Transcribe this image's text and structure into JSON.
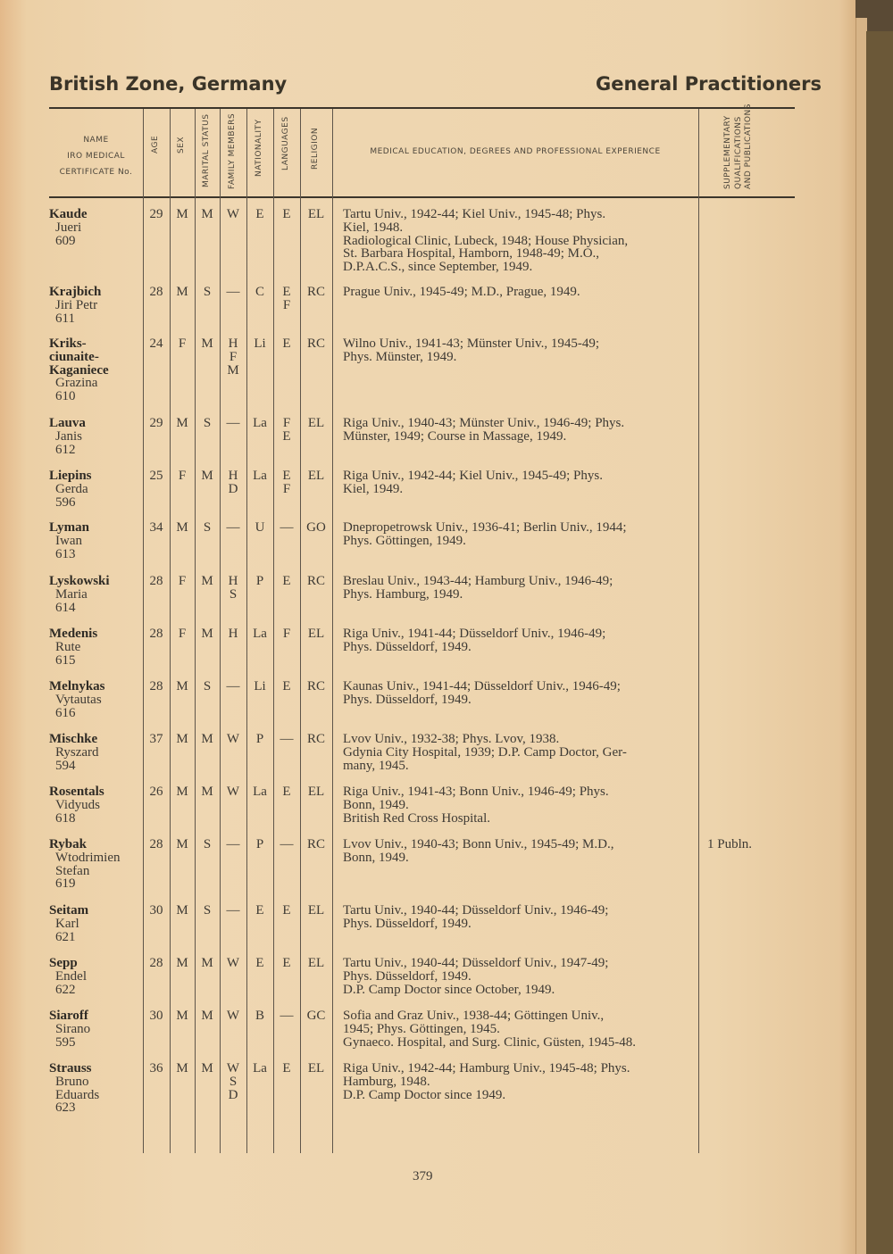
{
  "header": {
    "left": "British Zone, Germany",
    "right": "General Practitioners"
  },
  "columns": {
    "name": [
      "NAME",
      "IRO MEDICAL",
      "CERTIFICATE No."
    ],
    "age": "AGE",
    "sex": "SEX",
    "marital": "MARITAL STATUS",
    "family": "FAMILY MEMBERS",
    "nationality": "NATIONALITY",
    "languages": "LANGUAGES",
    "religion": "RELIGION",
    "education": "MEDICAL EDUCATION, DEGREES AND PROFESSIONAL EXPERIENCE",
    "supplementary": [
      "SUPPLEMENTARY",
      "QUALIFICATIONS",
      "AND PUBLICATIONS"
    ]
  },
  "rows": [
    {
      "surname": [
        "Kaude"
      ],
      "given": [
        "Jueri"
      ],
      "cert": "609",
      "age": "29",
      "sex": "M",
      "marital": "M",
      "family": [
        "W"
      ],
      "nationality": "E",
      "languages": [
        "E"
      ],
      "religion": "EL",
      "education": [
        "Tartu Univ., 1942-44; Kiel Univ., 1945-48; Phys.",
        "Kiel, 1948.",
        "Radiological Clinic, Lubeck, 1948; House Physician,",
        "St. Barbara Hospital, Hamborn, 1948-49; M.O.,",
        "D.P.A.C.S., since September, 1949."
      ],
      "supplementary": ""
    },
    {
      "surname": [
        "Krajbich"
      ],
      "given": [
        "Jiri Petr"
      ],
      "cert": "611",
      "age": "28",
      "sex": "M",
      "marital": "S",
      "family": [
        "—"
      ],
      "nationality": "C",
      "languages": [
        "E",
        "F"
      ],
      "religion": "RC",
      "education": [
        "Prague Univ., 1945-49; M.D., Prague, 1949."
      ],
      "supplementary": ""
    },
    {
      "surname": [
        "Kriks-",
        "ciunaite-",
        "Kaganiece"
      ],
      "given": [
        "Grazina"
      ],
      "cert": "610",
      "age": "24",
      "sex": "F",
      "marital": "M",
      "family": [
        "H",
        "F",
        "M"
      ],
      "nationality": "Li",
      "languages": [
        "E"
      ],
      "religion": "RC",
      "education": [
        "Wilno Univ., 1941-43; Münster Univ., 1945-49;",
        "Phys. Münster, 1949."
      ],
      "supplementary": ""
    },
    {
      "surname": [
        "Lauva"
      ],
      "given": [
        "Janis"
      ],
      "cert": "612",
      "age": "29",
      "sex": "M",
      "marital": "S",
      "family": [
        "—"
      ],
      "nationality": "La",
      "languages": [
        "F",
        "E"
      ],
      "religion": "EL",
      "education": [
        "Riga Univ., 1940-43; Münster Univ., 1946-49; Phys.",
        "Münster, 1949; Course in Massage, 1949."
      ],
      "supplementary": ""
    },
    {
      "surname": [
        "Liepins"
      ],
      "given": [
        "Gerda"
      ],
      "cert": "596",
      "age": "25",
      "sex": "F",
      "marital": "M",
      "family": [
        "H",
        "D"
      ],
      "nationality": "La",
      "languages": [
        "E",
        "F"
      ],
      "religion": "EL",
      "education": [
        "Riga Univ., 1942-44; Kiel Univ., 1945-49; Phys.",
        "Kiel, 1949."
      ],
      "supplementary": ""
    },
    {
      "surname": [
        "Lyman"
      ],
      "given": [
        "Iwan"
      ],
      "cert": "613",
      "age": "34",
      "sex": "M",
      "marital": "S",
      "family": [
        "—"
      ],
      "nationality": "U",
      "languages": [
        "—"
      ],
      "religion": "GO",
      "education": [
        "Dnepropetrowsk Univ., 1936-41; Berlin Univ., 1944;",
        "Phys. Göttingen, 1949."
      ],
      "supplementary": ""
    },
    {
      "surname": [
        "Lyskowski"
      ],
      "given": [
        "Maria"
      ],
      "cert": "614",
      "age": "28",
      "sex": "F",
      "marital": "M",
      "family": [
        "H",
        "S"
      ],
      "nationality": "P",
      "languages": [
        "E"
      ],
      "religion": "RC",
      "education": [
        "Breslau Univ., 1943-44; Hamburg Univ., 1946-49;",
        "Phys. Hamburg, 1949."
      ],
      "supplementary": ""
    },
    {
      "surname": [
        "Medenis"
      ],
      "given": [
        "Rute"
      ],
      "cert": "615",
      "age": "28",
      "sex": "F",
      "marital": "M",
      "family": [
        "H"
      ],
      "nationality": "La",
      "languages": [
        "F"
      ],
      "religion": "EL",
      "education": [
        "Riga Univ., 1941-44; Düsseldorf Univ., 1946-49;",
        "Phys. Düsseldorf, 1949."
      ],
      "supplementary": ""
    },
    {
      "surname": [
        "Melnykas"
      ],
      "given": [
        "Vytautas"
      ],
      "cert": "616",
      "age": "28",
      "sex": "M",
      "marital": "S",
      "family": [
        "—"
      ],
      "nationality": "Li",
      "languages": [
        "E"
      ],
      "religion": "RC",
      "education": [
        "Kaunas Univ., 1941-44; Düsseldorf Univ., 1946-49;",
        "Phys. Düsseldorf, 1949."
      ],
      "supplementary": ""
    },
    {
      "surname": [
        "Mischke"
      ],
      "given": [
        "Ryszard"
      ],
      "cert": "594",
      "age": "37",
      "sex": "M",
      "marital": "M",
      "family": [
        "W"
      ],
      "nationality": "P",
      "languages": [
        "—"
      ],
      "religion": "RC",
      "education": [
        "Lvov Univ., 1932-38; Phys. Lvov, 1938.",
        "Gdynia City Hospital, 1939; D.P. Camp Doctor, Ger-",
        "many, 1945."
      ],
      "supplementary": ""
    },
    {
      "surname": [
        "Rosentals"
      ],
      "given": [
        "Vidyuds"
      ],
      "cert": "618",
      "age": "26",
      "sex": "M",
      "marital": "M",
      "family": [
        "W"
      ],
      "nationality": "La",
      "languages": [
        "E"
      ],
      "religion": "EL",
      "education": [
        "Riga Univ., 1941-43; Bonn Univ., 1946-49; Phys.",
        "Bonn, 1949.",
        "British Red Cross Hospital."
      ],
      "supplementary": ""
    },
    {
      "surname": [
        "Rybak"
      ],
      "given": [
        "Wtodrimien",
        "Stefan"
      ],
      "cert": "619",
      "age": "28",
      "sex": "M",
      "marital": "S",
      "family": [
        "—"
      ],
      "nationality": "P",
      "languages": [
        "—"
      ],
      "religion": "RC",
      "education": [
        "Lvov Univ., 1940-43; Bonn Univ., 1945-49; M.D.,",
        "Bonn, 1949."
      ],
      "supplementary": "1 Publn."
    },
    {
      "surname": [
        "Seitam"
      ],
      "given": [
        "Karl"
      ],
      "cert": "621",
      "age": "30",
      "sex": "M",
      "marital": "S",
      "family": [
        "—"
      ],
      "nationality": "E",
      "languages": [
        "E"
      ],
      "religion": "EL",
      "education": [
        "Tartu Univ., 1940-44; Düsseldorf Univ., 1946-49;",
        "Phys. Düsseldorf, 1949."
      ],
      "supplementary": ""
    },
    {
      "surname": [
        "Sepp"
      ],
      "given": [
        "Endel"
      ],
      "cert": "622",
      "age": "28",
      "sex": "M",
      "marital": "M",
      "family": [
        "W"
      ],
      "nationality": "E",
      "languages": [
        "E"
      ],
      "religion": "EL",
      "education": [
        "Tartu Univ., 1940-44; Düsseldorf Univ., 1947-49;",
        "Phys. Düsseldorf, 1949.",
        "D.P. Camp Doctor since October, 1949."
      ],
      "supplementary": ""
    },
    {
      "surname": [
        "Siaroff"
      ],
      "given": [
        "Sirano"
      ],
      "cert": "595",
      "age": "30",
      "sex": "M",
      "marital": "M",
      "family": [
        "W"
      ],
      "nationality": "B",
      "languages": [
        "—"
      ],
      "religion": "GC",
      "education": [
        "Sofia and Graz Univ., 1938-44; Göttingen Univ.,",
        "1945; Phys. Göttingen, 1945.",
        "Gynaeco. Hospital, and Surg. Clinic, Güsten, 1945-48."
      ],
      "supplementary": ""
    },
    {
      "surname": [
        "Strauss"
      ],
      "given": [
        "Bruno",
        "Eduards"
      ],
      "cert": "623",
      "age": "36",
      "sex": "M",
      "marital": "M",
      "family": [
        "W",
        "S",
        "D"
      ],
      "nationality": "La",
      "languages": [
        "E"
      ],
      "religion": "EL",
      "education": [
        "Riga Univ., 1942-44; Hamburg Univ., 1945-48; Phys.",
        "Hamburg, 1948.",
        "D.P. Camp Doctor since 1949."
      ],
      "supplementary": ""
    }
  ],
  "page_number": "379"
}
